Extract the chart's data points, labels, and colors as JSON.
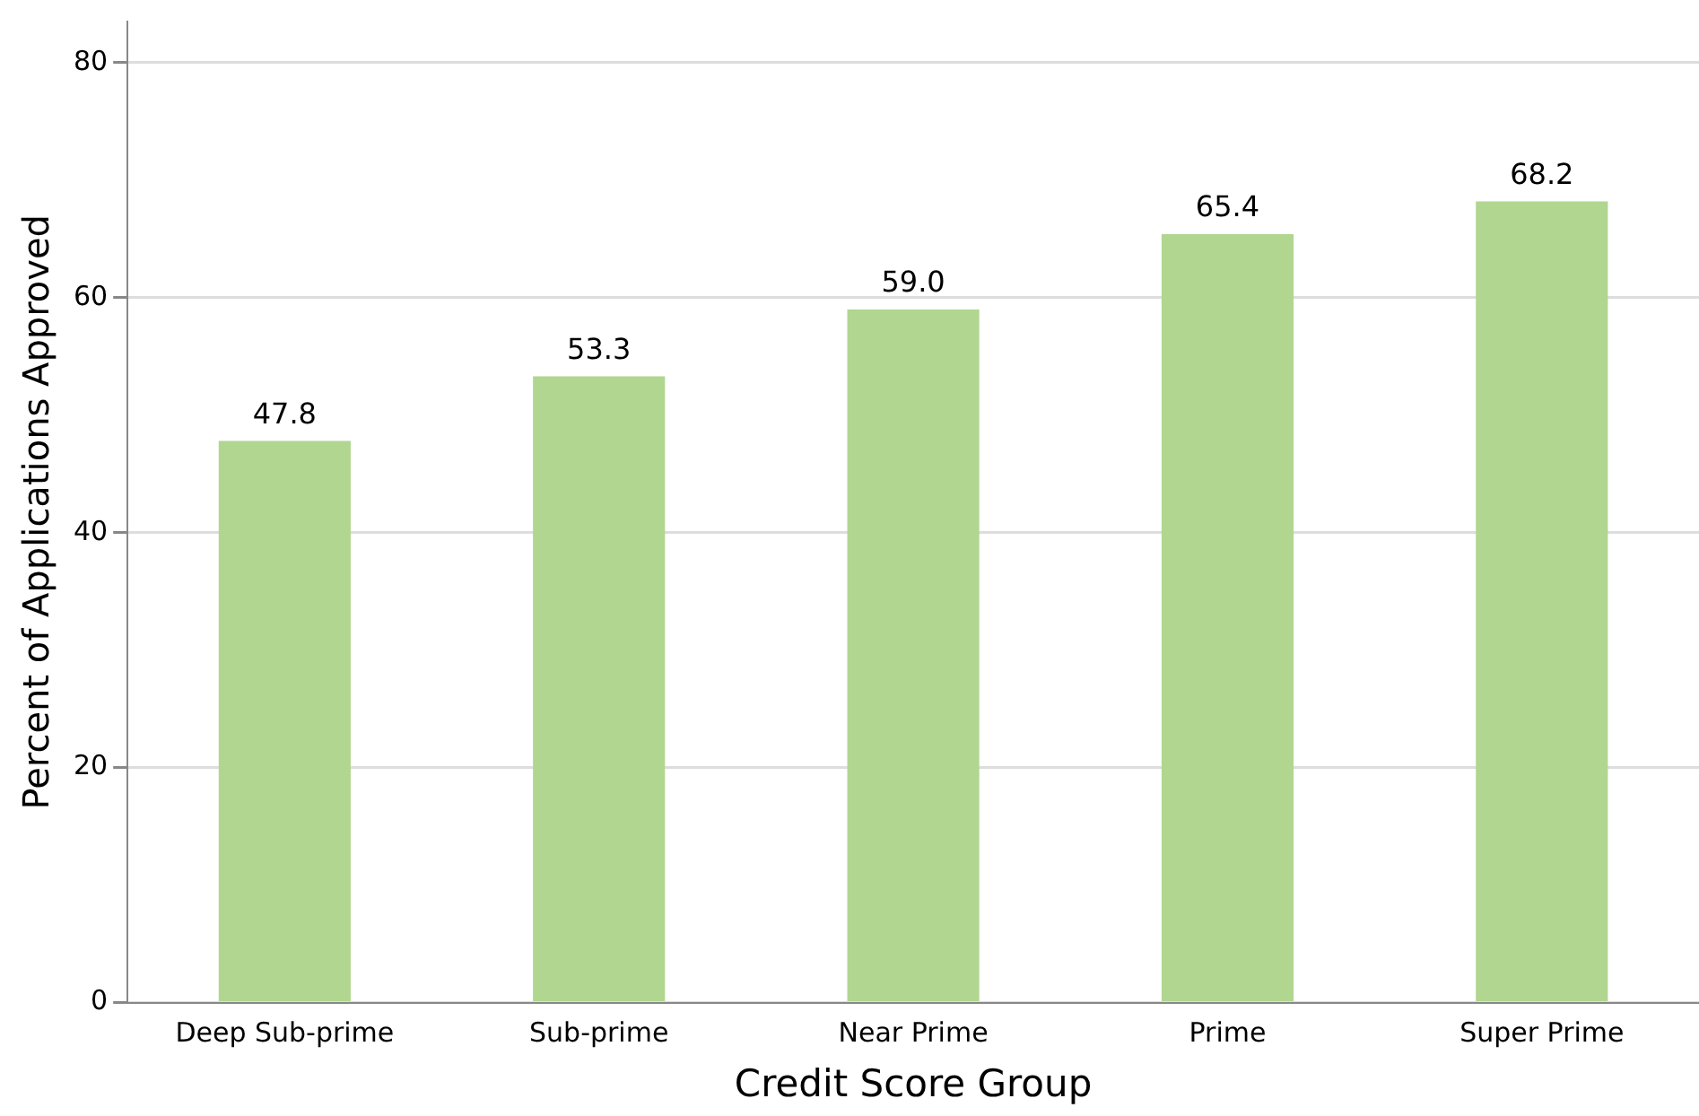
{
  "chart_data": {
    "type": "bar",
    "xlabel": "Credit Score Group",
    "ylabel": "Percent of Applications Approved",
    "categories": [
      "Deep Sub-prime",
      "Sub-prime",
      "Near Prime",
      "Prime",
      "Super Prime"
    ],
    "values": [
      47.8,
      53.3,
      59.0,
      65.4,
      68.2
    ],
    "value_labels": [
      "47.8",
      "53.3",
      "59.0",
      "65.4",
      "68.2"
    ],
    "color": "#b0d690",
    "ylim": [
      0,
      83.5
    ],
    "yticks": [
      0,
      20,
      40,
      60,
      80
    ],
    "grid": "y",
    "legend": false
  }
}
